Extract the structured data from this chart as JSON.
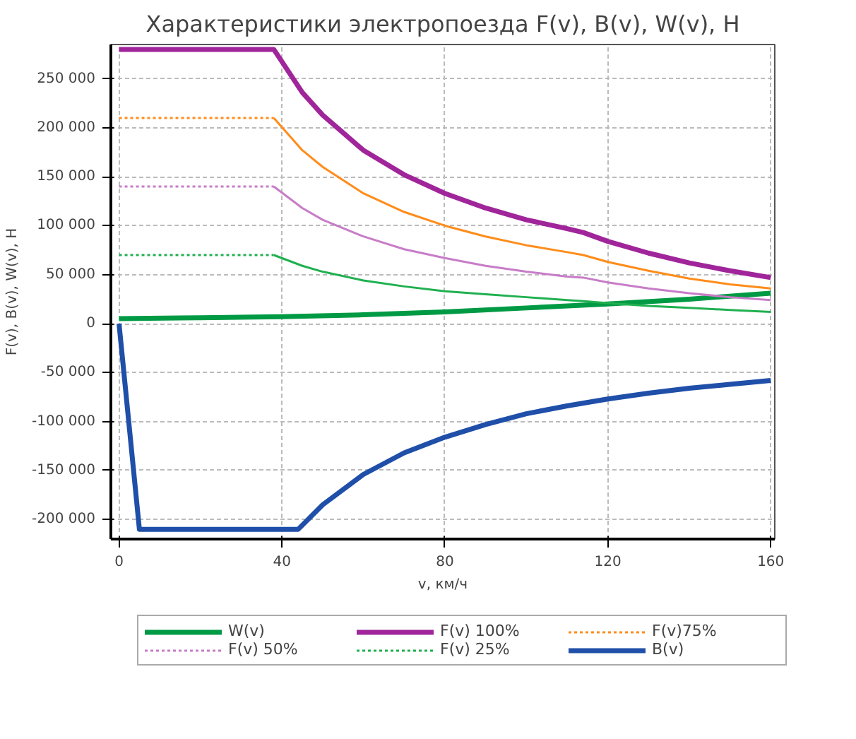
{
  "chart_data": {
    "type": "line",
    "title": "Характеристики электропоезда F(v), B(v), W(v), H",
    "xlabel": "v, км/ч",
    "ylabel": "F(v), B(v), W(v), H",
    "xlim": [
      -2,
      161
    ],
    "xticks": [
      0,
      40,
      80,
      120,
      160
    ],
    "ylim": [
      -220000,
      285000
    ],
    "yticks": [
      {
        "value": -200000,
        "label": "-200 000"
      },
      {
        "value": -150000,
        "label": "-150 000"
      },
      {
        "value": -100000,
        "label": "-100 000"
      },
      {
        "value": -50000,
        "label": "-50 000"
      },
      0,
      {
        "value": 50000,
        "label": "50 000"
      },
      {
        "value": 100000,
        "label": "100 000"
      },
      {
        "value": 150000,
        "label": "150 000"
      },
      {
        "value": 200000,
        "label": "200 000"
      },
      {
        "value": 250000,
        "label": "250 000"
      }
    ],
    "grid": true,
    "legend": "bottom",
    "series": [
      {
        "name": "W(v)",
        "color": "#009a44",
        "line_style": "solid",
        "x": [
          0,
          20,
          40,
          60,
          80,
          100,
          120,
          140,
          160
        ],
        "values": [
          5000,
          6000,
          7000,
          9000,
          12000,
          16000,
          20000,
          25000,
          31000
        ]
      },
      {
        "name": "F(v) 100%",
        "color": "#a0259a",
        "line_style": "solid",
        "x": [
          0,
          38,
          45,
          50,
          60,
          70,
          80,
          90,
          100,
          110,
          114,
          120,
          130,
          140,
          150,
          160
        ],
        "values": [
          280000,
          280000,
          236000,
          213000,
          177000,
          152000,
          133000,
          118000,
          106000,
          97000,
          93000,
          84000,
          72000,
          62000,
          54000,
          47000
        ]
      },
      {
        "name": "F(v)75%",
        "color": "#ff8c1a",
        "line_style": "dotted",
        "x": [
          0,
          38
        ],
        "values": [
          210000,
          210000
        ]
      },
      {
        "name": "F(v) 50%",
        "color": "#c77dc7",
        "line_style": "dotted",
        "x": [
          0,
          38
        ],
        "values": [
          140000,
          140000
        ]
      },
      {
        "name": "F(v) 25%",
        "color": "#20b050",
        "line_style": "dotted",
        "x": [
          0,
          38
        ],
        "values": [
          70000,
          70000
        ]
      },
      {
        "name": "B(v)",
        "color": "#1f4fa8",
        "line_style": "solid",
        "x": [
          0,
          5,
          44,
          50,
          60,
          70,
          80,
          90,
          100,
          110,
          120,
          130,
          140,
          150,
          160
        ],
        "values": [
          0,
          -210000,
          -210000,
          -185000,
          -154000,
          -132000,
          -116000,
          -103000,
          -92000,
          -84000,
          -77000,
          -71000,
          -66000,
          -62000,
          -58000
        ]
      },
      {
        "color": "#ff8c1a",
        "line_style": "solid",
        "x": [
          38,
          45,
          50,
          60,
          70,
          80,
          90,
          100,
          110,
          114,
          120,
          130,
          140,
          150,
          160
        ],
        "values": [
          210000,
          177000,
          160000,
          133000,
          114000,
          100000,
          89000,
          80000,
          73000,
          70000,
          63000,
          54000,
          46000,
          40000,
          36000
        ]
      },
      {
        "color": "#c77dc7",
        "line_style": "solid",
        "x": [
          38,
          45,
          50,
          60,
          70,
          80,
          90,
          100,
          110,
          114,
          120,
          130,
          140,
          150,
          160
        ],
        "values": [
          140000,
          118000,
          106000,
          89000,
          76000,
          67000,
          59000,
          53000,
          48000,
          47000,
          42000,
          36000,
          31000,
          27000,
          24000
        ]
      },
      {
        "color": "#20b050",
        "line_style": "solid",
        "x": [
          38,
          45,
          50,
          60,
          70,
          80,
          90,
          100,
          110,
          114,
          120,
          130,
          140,
          150,
          160
        ],
        "values": [
          70000,
          59000,
          53000,
          44000,
          38000,
          33000,
          30000,
          27000,
          24000,
          23000,
          21000,
          18000,
          16000,
          14000,
          12000
        ]
      }
    ]
  }
}
